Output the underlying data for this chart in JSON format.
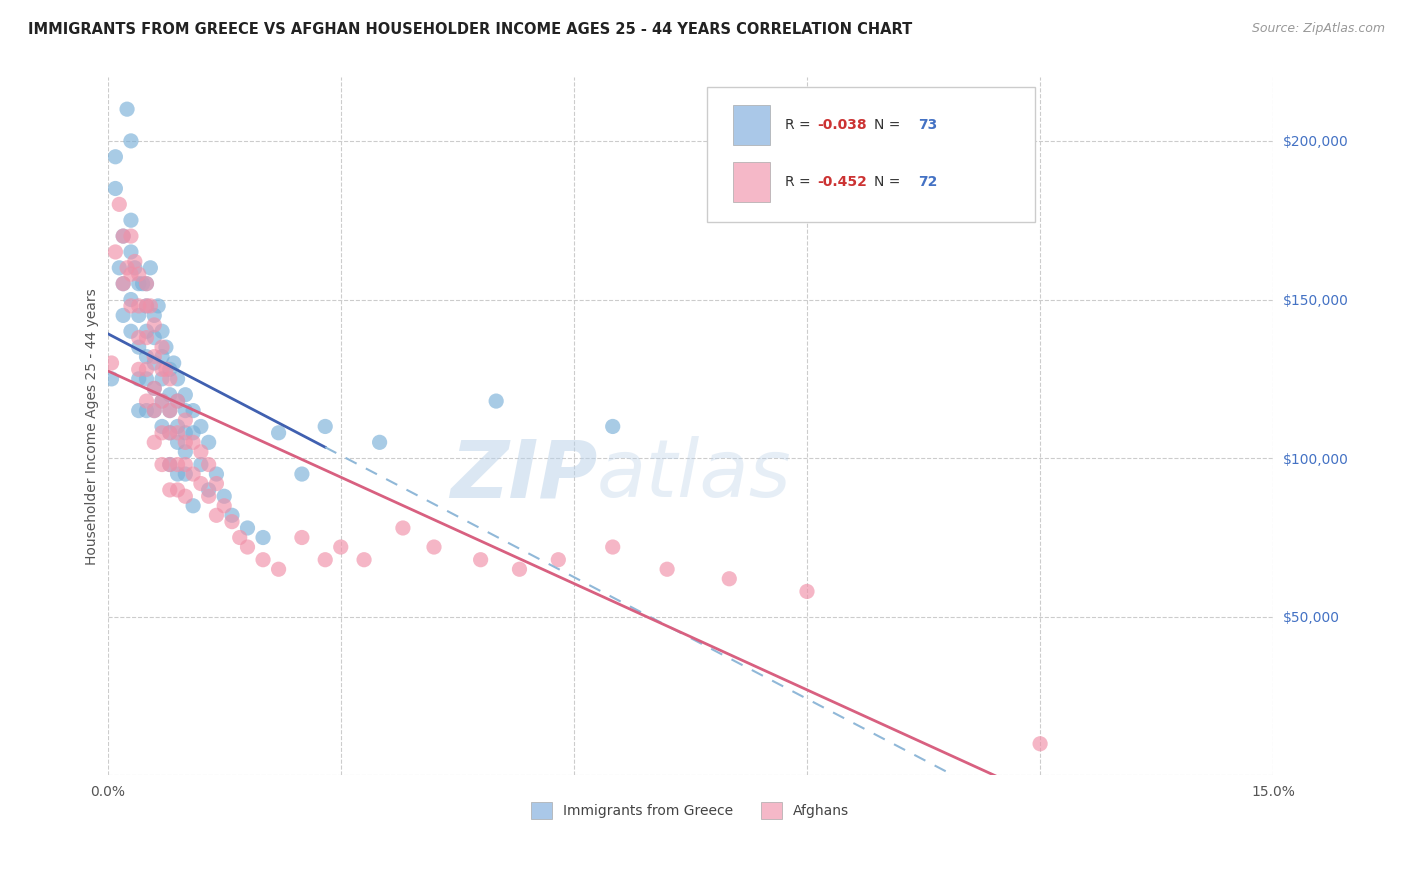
{
  "title": "IMMIGRANTS FROM GREECE VS AFGHAN HOUSEHOLDER INCOME AGES 25 - 44 YEARS CORRELATION CHART",
  "source": "Source: ZipAtlas.com",
  "ylabel": "Householder Income Ages 25 - 44 years",
  "xlim": [
    0.0,
    0.15
  ],
  "ylim": [
    0,
    220000
  ],
  "xticks": [
    0.0,
    0.03,
    0.06,
    0.09,
    0.12,
    0.15
  ],
  "xticklabels": [
    "0.0%",
    "",
    "",
    "",
    "",
    "15.0%"
  ],
  "yticks": [
    0,
    50000,
    100000,
    150000,
    200000
  ],
  "yticklabels": [
    "",
    "$50,000",
    "$100,000",
    "$150,000",
    "$200,000"
  ],
  "legend_color1": "#aac8e8",
  "legend_color2": "#f5b8c8",
  "dot_color1": "#7ab0d8",
  "dot_color2": "#f090a8",
  "line_color1_solid": "#4060b0",
  "line_color1_dashed": "#90b8d8",
  "line_color2": "#d86080",
  "watermark_zip": "ZIP",
  "watermark_atlas": "atlas",
  "background_color": "#ffffff",
  "grid_color": "#cccccc",
  "greece_x": [
    0.0005,
    0.001,
    0.001,
    0.0015,
    0.002,
    0.002,
    0.002,
    0.0025,
    0.003,
    0.003,
    0.003,
    0.003,
    0.003,
    0.0035,
    0.004,
    0.004,
    0.004,
    0.004,
    0.004,
    0.0045,
    0.005,
    0.005,
    0.005,
    0.005,
    0.005,
    0.005,
    0.0055,
    0.006,
    0.006,
    0.006,
    0.006,
    0.006,
    0.0065,
    0.007,
    0.007,
    0.007,
    0.007,
    0.007,
    0.0075,
    0.008,
    0.008,
    0.008,
    0.008,
    0.008,
    0.0085,
    0.009,
    0.009,
    0.009,
    0.009,
    0.009,
    0.01,
    0.01,
    0.01,
    0.01,
    0.01,
    0.011,
    0.011,
    0.011,
    0.012,
    0.012,
    0.013,
    0.013,
    0.014,
    0.015,
    0.016,
    0.018,
    0.02,
    0.022,
    0.025,
    0.028,
    0.035,
    0.05,
    0.065
  ],
  "greece_y": [
    125000,
    195000,
    185000,
    160000,
    170000,
    155000,
    145000,
    210000,
    200000,
    175000,
    165000,
    150000,
    140000,
    160000,
    155000,
    145000,
    135000,
    125000,
    115000,
    155000,
    155000,
    148000,
    140000,
    132000,
    125000,
    115000,
    160000,
    145000,
    138000,
    130000,
    122000,
    115000,
    148000,
    140000,
    132000,
    125000,
    118000,
    110000,
    135000,
    128000,
    120000,
    115000,
    108000,
    98000,
    130000,
    125000,
    118000,
    110000,
    105000,
    95000,
    120000,
    115000,
    108000,
    102000,
    95000,
    115000,
    108000,
    85000,
    110000,
    98000,
    105000,
    90000,
    95000,
    88000,
    82000,
    78000,
    75000,
    108000,
    95000,
    110000,
    105000,
    118000,
    110000
  ],
  "afghan_x": [
    0.0005,
    0.001,
    0.0015,
    0.002,
    0.002,
    0.0025,
    0.003,
    0.003,
    0.003,
    0.0035,
    0.004,
    0.004,
    0.004,
    0.004,
    0.005,
    0.005,
    0.005,
    0.005,
    0.005,
    0.0055,
    0.006,
    0.006,
    0.006,
    0.006,
    0.006,
    0.007,
    0.007,
    0.007,
    0.007,
    0.007,
    0.0075,
    0.008,
    0.008,
    0.008,
    0.008,
    0.008,
    0.009,
    0.009,
    0.009,
    0.009,
    0.01,
    0.01,
    0.01,
    0.01,
    0.011,
    0.011,
    0.012,
    0.012,
    0.013,
    0.013,
    0.014,
    0.014,
    0.015,
    0.016,
    0.017,
    0.018,
    0.02,
    0.022,
    0.025,
    0.028,
    0.03,
    0.033,
    0.038,
    0.042,
    0.048,
    0.053,
    0.058,
    0.065,
    0.072,
    0.08,
    0.09,
    0.12
  ],
  "afghan_y": [
    130000,
    165000,
    180000,
    170000,
    155000,
    160000,
    170000,
    158000,
    148000,
    162000,
    158000,
    148000,
    138000,
    128000,
    155000,
    148000,
    138000,
    128000,
    118000,
    148000,
    142000,
    132000,
    122000,
    115000,
    105000,
    135000,
    128000,
    118000,
    108000,
    98000,
    128000,
    125000,
    115000,
    108000,
    98000,
    90000,
    118000,
    108000,
    98000,
    90000,
    112000,
    105000,
    98000,
    88000,
    105000,
    95000,
    102000,
    92000,
    98000,
    88000,
    92000,
    82000,
    85000,
    80000,
    75000,
    72000,
    68000,
    65000,
    75000,
    68000,
    72000,
    68000,
    78000,
    72000,
    68000,
    65000,
    68000,
    72000,
    65000,
    62000,
    58000,
    10000
  ]
}
